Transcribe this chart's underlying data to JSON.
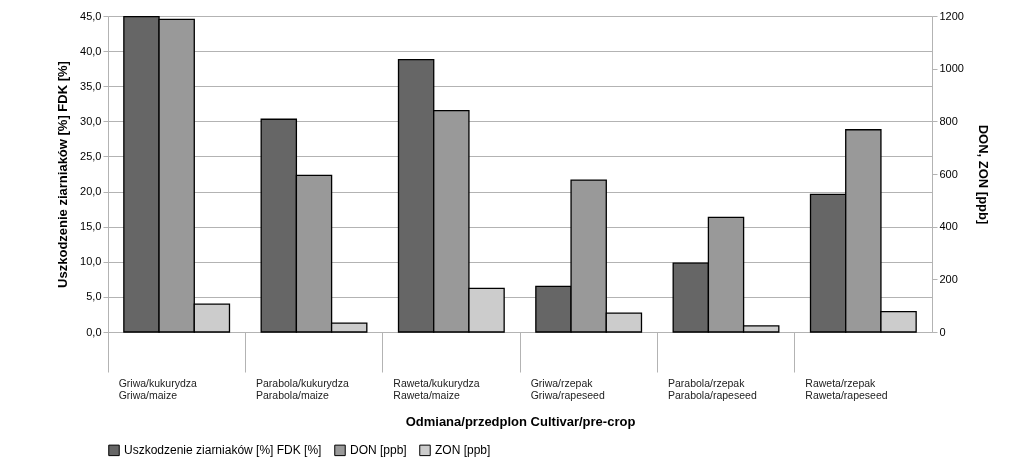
{
  "chart_data": {
    "type": "bar",
    "xlabel": "Odmiana/przedplon Cultivar/pre-crop",
    "ylabel": "Uszkodzenie ziarniaków [%] FDK [%]",
    "y2label": "DON, ZON [ppb]",
    "categories": [
      "Griwa/kukurydza\nGriwa/maize",
      "Parabola/kukurydza\nParabola/maize",
      "Raweta/kukurydza\nRaweta/maize",
      "Griwa/rzepak\nGriwa/rapeseed",
      "Parabola/rzepak\nParabola/rapeseed",
      "Raweta/rzepak\nRaweta/rapeseed"
    ],
    "series": [
      {
        "name": "Uszkodzenie ziarniaków [%] FDK [%]",
        "color": "#666666",
        "values": [
          44.9,
          30.3,
          38.8,
          6.5,
          9.8,
          19.6
        ]
      },
      {
        "name": "DON [ppb]",
        "color": "#999999",
        "axis": "y2",
        "values": [
          1187,
          595,
          841,
          577,
          435,
          768
        ]
      },
      {
        "name": "ZON [ppb]",
        "color": "#cccccc",
        "axis": "y2",
        "values": [
          106,
          34,
          166,
          72,
          23,
          77
        ]
      }
    ],
    "ylim": [
      0,
      45
    ],
    "yticks": [
      {
        "value": 0,
        "label": "0,0"
      },
      {
        "value": 5,
        "label": "5,0"
      },
      {
        "value": 10,
        "label": "10,0"
      },
      {
        "value": 15,
        "label": "15,0"
      },
      {
        "value": 20,
        "label": "20,0"
      },
      {
        "value": 25,
        "label": "25,0"
      },
      {
        "value": 30,
        "label": "30,0"
      },
      {
        "value": 35,
        "label": "35,0"
      },
      {
        "value": 40,
        "label": "40,0"
      },
      {
        "value": 45,
        "label": "45,0"
      }
    ],
    "y2lim": [
      0,
      1200
    ],
    "y2ticks": [
      0,
      200,
      400,
      600,
      800,
      1000,
      1200
    ],
    "grid": true,
    "legend": "bottom"
  }
}
